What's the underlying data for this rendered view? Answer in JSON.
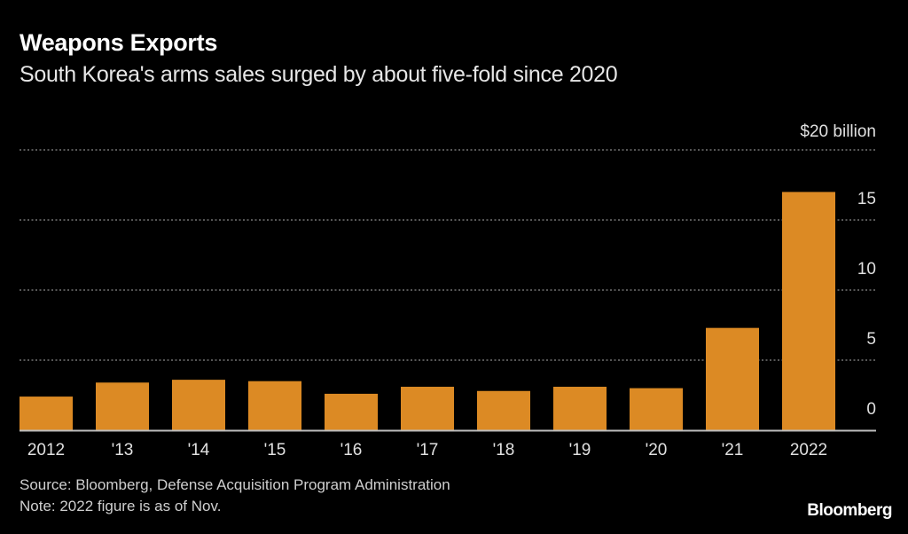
{
  "chart_data": {
    "type": "bar",
    "title": "Weapons Exports",
    "subtitle": "South Korea's arms sales surged by about five-fold since 2020",
    "categories": [
      "2012",
      "'13",
      "'14",
      "'15",
      "'16",
      "'17",
      "'18",
      "'19",
      "'20",
      "'21",
      "2022"
    ],
    "values": [
      2.4,
      3.4,
      3.6,
      3.5,
      2.6,
      3.1,
      2.8,
      3.1,
      3.0,
      7.3,
      17.0
    ],
    "ylabel": "$20 billion",
    "yticks": [
      0,
      5,
      10,
      15,
      20
    ],
    "ytick_labels": [
      "0",
      "5",
      "10",
      "15",
      "$20 billion"
    ],
    "ylim": [
      0,
      20
    ],
    "grid": true,
    "bar_color": "#dc8a24"
  },
  "footer": {
    "source": "Source: Bloomberg, Defense Acquisition Program Administration",
    "note": "Note: 2022 figure is as of Nov.",
    "logo": "Bloomberg"
  }
}
